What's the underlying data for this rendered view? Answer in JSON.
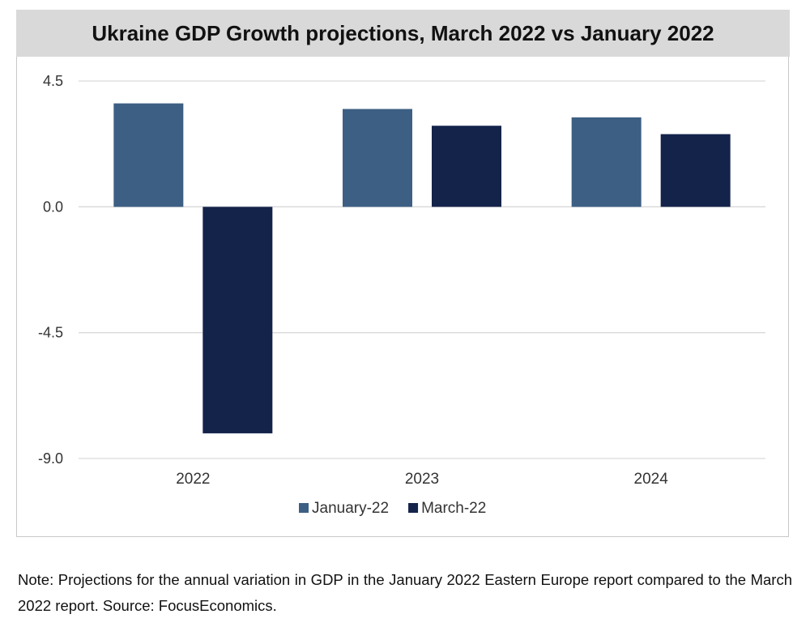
{
  "chart_data": {
    "type": "bar",
    "title": "Ukraine GDP Growth projections, March 2022 vs January 2022",
    "categories": [
      "2022",
      "2023",
      "2024"
    ],
    "series": [
      {
        "name": "January-22",
        "values": [
          3.7,
          3.5,
          3.2
        ],
        "color": "#3d5f84"
      },
      {
        "name": "March-22",
        "values": [
          -8.1,
          2.9,
          2.6
        ],
        "color": "#14234a"
      }
    ],
    "yticks": [
      4.5,
      0.0,
      -4.5,
      -9.0
    ],
    "ylim": [
      -9.0,
      4.5
    ],
    "grid": true,
    "legend_position": "bottom"
  },
  "note": "Note: Projections for the annual variation in GDP in the January 2022 Eastern Europe report compared to the March 2022 report. Source: FocusEconomics."
}
